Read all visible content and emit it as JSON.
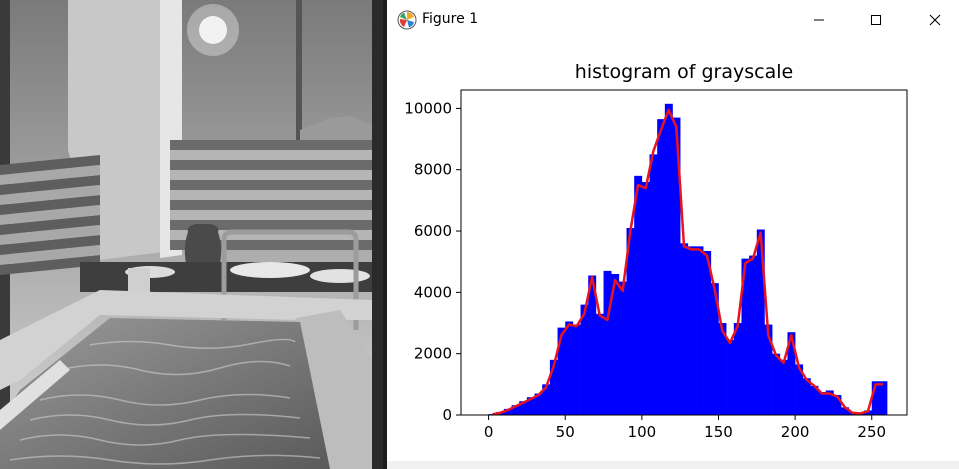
{
  "window": {
    "title": "Figure 1",
    "icon": "matplotlib-icon",
    "controls": [
      "minimize-icon",
      "maximize-icon",
      "close-icon"
    ]
  },
  "photo": {
    "description_icon": "grayscale-photo"
  },
  "chart_data": {
    "type": "bar",
    "title": "histogram of grayscale",
    "xlabel": "",
    "ylabel": "",
    "xlim": [
      -18,
      273
    ],
    "ylim": [
      0,
      10600
    ],
    "xticks": [
      0,
      50,
      100,
      150,
      200,
      250
    ],
    "yticks": [
      0,
      2000,
      4000,
      6000,
      8000,
      10000
    ],
    "bar_color": "#0000ff",
    "line_color": "#e8141e",
    "grid": false,
    "series": [
      {
        "type": "bar",
        "x": [
          0,
          5,
          10,
          15,
          20,
          25,
          30,
          35,
          40,
          45,
          50,
          55,
          60,
          65,
          70,
          75,
          80,
          85,
          90,
          95,
          100,
          105,
          110,
          115,
          120,
          125,
          130,
          135,
          140,
          145,
          150,
          155,
          160,
          165,
          170,
          175,
          180,
          185,
          190,
          195,
          200,
          205,
          210,
          215,
          220,
          225,
          230,
          235,
          240,
          245,
          250,
          255
        ],
        "values": [
          30,
          100,
          200,
          320,
          450,
          580,
          700,
          1000,
          1800,
          2850,
          3050,
          2950,
          3600,
          4550,
          3300,
          4700,
          4600,
          4350,
          6100,
          7800,
          7600,
          8500,
          9650,
          10150,
          9700,
          5600,
          5500,
          5500,
          5350,
          4300,
          3000,
          2450,
          3000,
          5100,
          5200,
          6050,
          2950,
          2000,
          1800,
          2700,
          1650,
          1200,
          950,
          750,
          800,
          650,
          250,
          100,
          80,
          150,
          1100,
          1100
        ]
      },
      {
        "type": "line",
        "x": [
          0,
          5,
          10,
          15,
          20,
          25,
          30,
          35,
          40,
          45,
          50,
          55,
          60,
          65,
          70,
          75,
          80,
          85,
          90,
          95,
          100,
          105,
          110,
          115,
          120,
          125,
          130,
          135,
          140,
          145,
          150,
          155,
          160,
          165,
          170,
          175,
          180,
          185,
          190,
          195,
          200,
          205,
          210,
          215,
          220,
          225,
          230,
          235,
          240,
          245,
          250,
          255
        ],
        "values": [
          20,
          70,
          160,
          280,
          400,
          520,
          650,
          900,
          1600,
          2600,
          2950,
          2900,
          3300,
          4500,
          3250,
          3100,
          4400,
          4050,
          6000,
          7500,
          7400,
          8600,
          9300,
          9950,
          9400,
          5500,
          5400,
          5400,
          5200,
          4100,
          2750,
          2350,
          2900,
          4950,
          5100,
          5950,
          2600,
          1950,
          1700,
          2600,
          1550,
          1150,
          950,
          700,
          700,
          600,
          250,
          70,
          50,
          120,
          1000,
          1000
        ]
      }
    ]
  }
}
